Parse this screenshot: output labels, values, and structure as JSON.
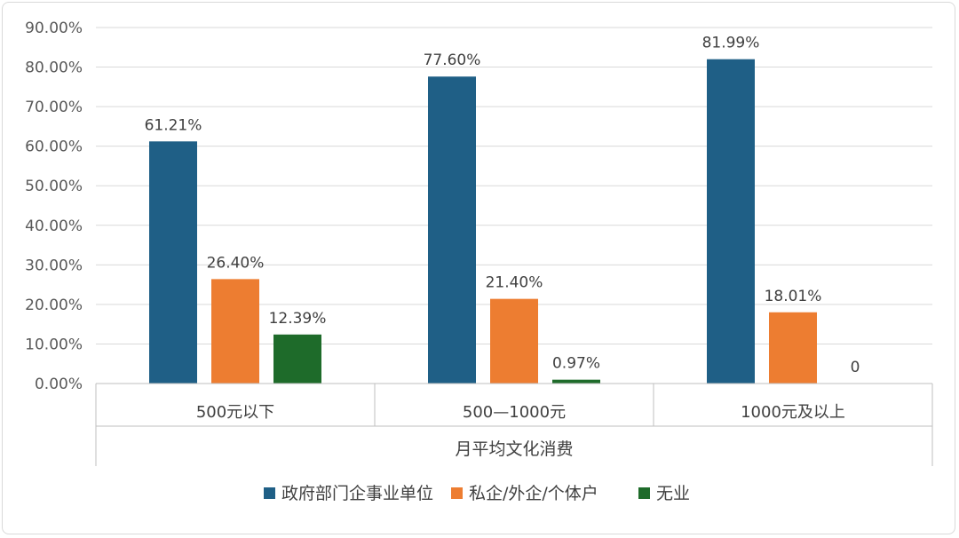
{
  "chart_data": {
    "type": "bar",
    "xlabel": "月平均文化消费",
    "ylabel": "",
    "ylim": [
      0,
      90
    ],
    "y_tick_labels": [
      "0.00%",
      "10.00%",
      "20.00%",
      "30.00%",
      "40.00%",
      "50.00%",
      "60.00%",
      "70.00%",
      "80.00%",
      "90.00%"
    ],
    "categories": [
      "500元以下",
      "500—1000元",
      "1000元及以上"
    ],
    "series": [
      {
        "name": "政府部门企事业单位",
        "color": "#1f5f86",
        "values": [
          61.21,
          77.6,
          81.99
        ],
        "labels": [
          "61.21%",
          "77.60%",
          "81.99%"
        ]
      },
      {
        "name": "私企/外企/个体户",
        "color": "#ed7d31",
        "values": [
          26.4,
          21.4,
          18.01
        ],
        "labels": [
          "26.40%",
          "21.40%",
          "18.01%"
        ]
      },
      {
        "name": "无业",
        "color": "#1e6b2a",
        "values": [
          12.39,
          0.97,
          0
        ],
        "labels": [
          "12.39%",
          "0.97%",
          "0"
        ]
      }
    ],
    "grid": true,
    "legend_position": "bottom"
  }
}
